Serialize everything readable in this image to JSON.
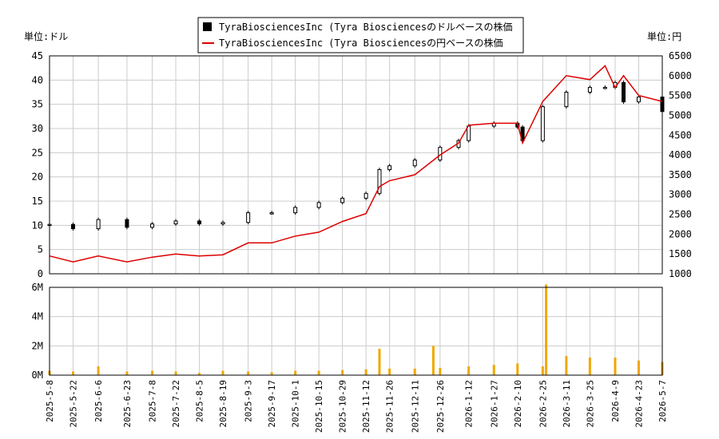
{
  "legend": {
    "usd_label": "TyraBiosciencesInc (Tyra Biosciencesのドルベースの株価",
    "jpy_label": "TyraBiosciencesInc (Tyra Biosciencesの円ベースの株価"
  },
  "axes": {
    "left_unit": "単位:ドル",
    "right_unit": "単位:円"
  },
  "colors": {
    "candle": "#000000",
    "yen_line": "#dd0000",
    "volume_bar": "#f0a800",
    "grid": "#cccccc"
  },
  "chart_data": [
    {
      "type": "candlestick",
      "ylim": [
        0,
        45
      ],
      "y_ticks": [
        "0",
        "5",
        "10",
        "15",
        "20",
        "25",
        "30",
        "35",
        "40",
        "45"
      ],
      "y2lim": [
        1000,
        6500
      ],
      "y2_ticks": [
        "1000",
        "1500",
        "2000",
        "2500",
        "3000",
        "3500",
        "4000",
        "4500",
        "5000",
        "5500",
        "6000",
        "6500"
      ],
      "grid": true,
      "series": [
        {
          "name": "TyraBiosciencesInc (Tyra Biosciencesのドルベースの株価",
          "axis": "left",
          "x": [
            "2025-05-08",
            "2025-05-22",
            "2025-06-06",
            "2025-06-23",
            "2025-07-08",
            "2025-07-22",
            "2025-08-05",
            "2025-08-19",
            "2025-09-03",
            "2025-09-17",
            "2025-10-01",
            "2025-10-15",
            "2025-10-29",
            "2025-11-12",
            "2025-11-20",
            "2025-11-26",
            "2025-12-11",
            "2025-12-26",
            "2026-01-06",
            "2026-01-12",
            "2026-01-27",
            "2026-02-10",
            "2026-02-13",
            "2026-02-25",
            "2026-03-11",
            "2026-03-25",
            "2026-04-03",
            "2026-04-09",
            "2026-04-14",
            "2026-04-23",
            "2026-05-07"
          ],
          "values": [
            10.2,
            9.3,
            11.2,
            9.6,
            10.3,
            10.9,
            10.3,
            10.6,
            12.6,
            12.6,
            13.7,
            14.7,
            15.6,
            16.6,
            21.5,
            22.3,
            23.5,
            26.1,
            27.5,
            30.5,
            31.1,
            30.3,
            27.5,
            34.5,
            37.5,
            38.5,
            38.5,
            39.5,
            35.5,
            36.5,
            33.5
          ]
        },
        {
          "name": "TyraBiosciencesInc (Tyra Biosciencesの円ベースの株価",
          "axis": "right",
          "x": [
            "2025-05-08",
            "2025-05-22",
            "2025-06-06",
            "2025-06-23",
            "2025-07-08",
            "2025-07-22",
            "2025-08-05",
            "2025-08-19",
            "2025-09-03",
            "2025-09-17",
            "2025-10-01",
            "2025-10-15",
            "2025-10-29",
            "2025-11-12",
            "2025-11-20",
            "2025-11-26",
            "2025-12-11",
            "2025-12-26",
            "2026-01-06",
            "2026-01-12",
            "2026-01-27",
            "2026-02-10",
            "2026-02-13",
            "2026-02-25",
            "2026-03-11",
            "2026-03-25",
            "2026-04-03",
            "2026-04-09",
            "2026-04-14",
            "2026-04-23",
            "2026-05-07"
          ],
          "values": [
            1450,
            1300,
            1450,
            1300,
            1420,
            1500,
            1450,
            1480,
            1780,
            1780,
            1950,
            2050,
            2320,
            2520,
            3200,
            3350,
            3500,
            4000,
            4300,
            4750,
            4800,
            4800,
            4300,
            5350,
            6000,
            5900,
            6250,
            5700,
            6000,
            5500,
            5350
          ]
        }
      ]
    },
    {
      "type": "bar",
      "ylim": [
        0,
        6000000
      ],
      "y_ticks": [
        "0M",
        "2M",
        "4M",
        "6M"
      ],
      "x_ticks": [
        "2025-5-8",
        "2025-5-22",
        "2025-6-6",
        "2025-6-23",
        "2025-7-8",
        "2025-7-22",
        "2025-8-5",
        "2025-8-19",
        "2025-9-3",
        "2025-9-17",
        "2025-10-1",
        "2025-10-15",
        "2025-10-29",
        "2025-11-12",
        "2025-11-26",
        "2025-12-11",
        "2025-12-26",
        "2026-1-12",
        "2026-1-27",
        "2026-2-10",
        "2026-2-25",
        "2026-3-11",
        "2026-3-25",
        "2026-4-9",
        "2026-4-23",
        "2026-5-7"
      ],
      "series": [
        {
          "x": [
            "2025-05-08",
            "2025-05-22",
            "2025-06-06",
            "2025-06-23",
            "2025-07-08",
            "2025-07-22",
            "2025-08-05",
            "2025-08-19",
            "2025-09-03",
            "2025-09-17",
            "2025-10-01",
            "2025-10-15",
            "2025-10-29",
            "2025-11-12",
            "2025-11-20",
            "2025-11-26",
            "2025-12-11",
            "2025-12-22",
            "2025-12-26",
            "2026-01-12",
            "2026-01-27",
            "2026-02-10",
            "2026-02-25",
            "2026-02-27",
            "2026-03-11",
            "2026-03-25",
            "2026-04-09",
            "2026-04-23",
            "2026-05-07"
          ],
          "values": [
            300000,
            250000,
            600000,
            250000,
            300000,
            250000,
            150000,
            300000,
            250000,
            200000,
            300000,
            300000,
            350000,
            400000,
            1800000,
            450000,
            450000,
            2000000,
            500000,
            600000,
            700000,
            800000,
            600000,
            6200000,
            1300000,
            1200000,
            1200000,
            1000000,
            900000
          ]
        }
      ]
    }
  ]
}
